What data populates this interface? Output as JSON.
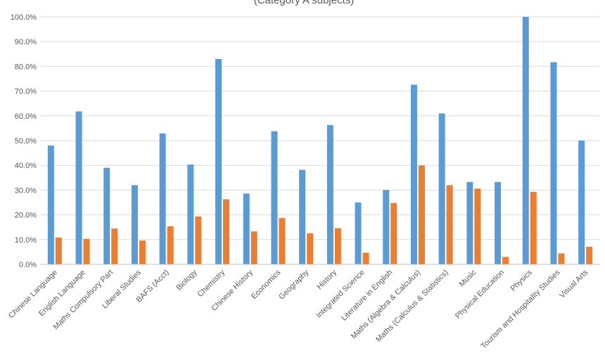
{
  "chart_data": {
    "type": "bar",
    "subtitle": "(Category A subjects)",
    "categories": [
      "Chinese Language",
      "English Language",
      "Maths Compulsory Part",
      "Liberal Studies",
      "BAFS (Acct)",
      "Biology",
      "Chemistry",
      "Chinese History",
      "Economics",
      "Geography",
      "History",
      "Integrated Science",
      "Literature in English",
      "Maths (Algebra & Calculus)",
      "Maths (Calculus & Statistics)",
      "Music",
      "Physical Education",
      "Physics",
      "Tourism and Hospitality Studies",
      "Visual Arts"
    ],
    "series": [
      {
        "color": "#5b9bd5",
        "values": [
          48.0,
          61.8,
          39.0,
          32.0,
          52.9,
          40.3,
          83.0,
          28.6,
          53.8,
          38.2,
          56.3,
          25.0,
          30.0,
          72.6,
          61.0,
          33.3,
          33.3,
          100.0,
          81.7,
          50.0
        ]
      },
      {
        "color": "#ed7d31",
        "values": [
          10.8,
          10.3,
          14.5,
          9.6,
          15.4,
          19.3,
          26.3,
          13.3,
          18.7,
          12.5,
          14.6,
          4.7,
          24.8,
          40.0,
          32.0,
          30.6,
          3.0,
          29.3,
          4.4,
          7.1
        ]
      }
    ],
    "ylim": [
      0,
      100
    ],
    "yticks": [
      "0.0%",
      "10.0%",
      "20.0%",
      "30.0%",
      "40.0%",
      "50.0%",
      "60.0%",
      "70.0%",
      "80.0%",
      "90.0%",
      "100.0%"
    ],
    "grid": true,
    "legend": "none"
  }
}
